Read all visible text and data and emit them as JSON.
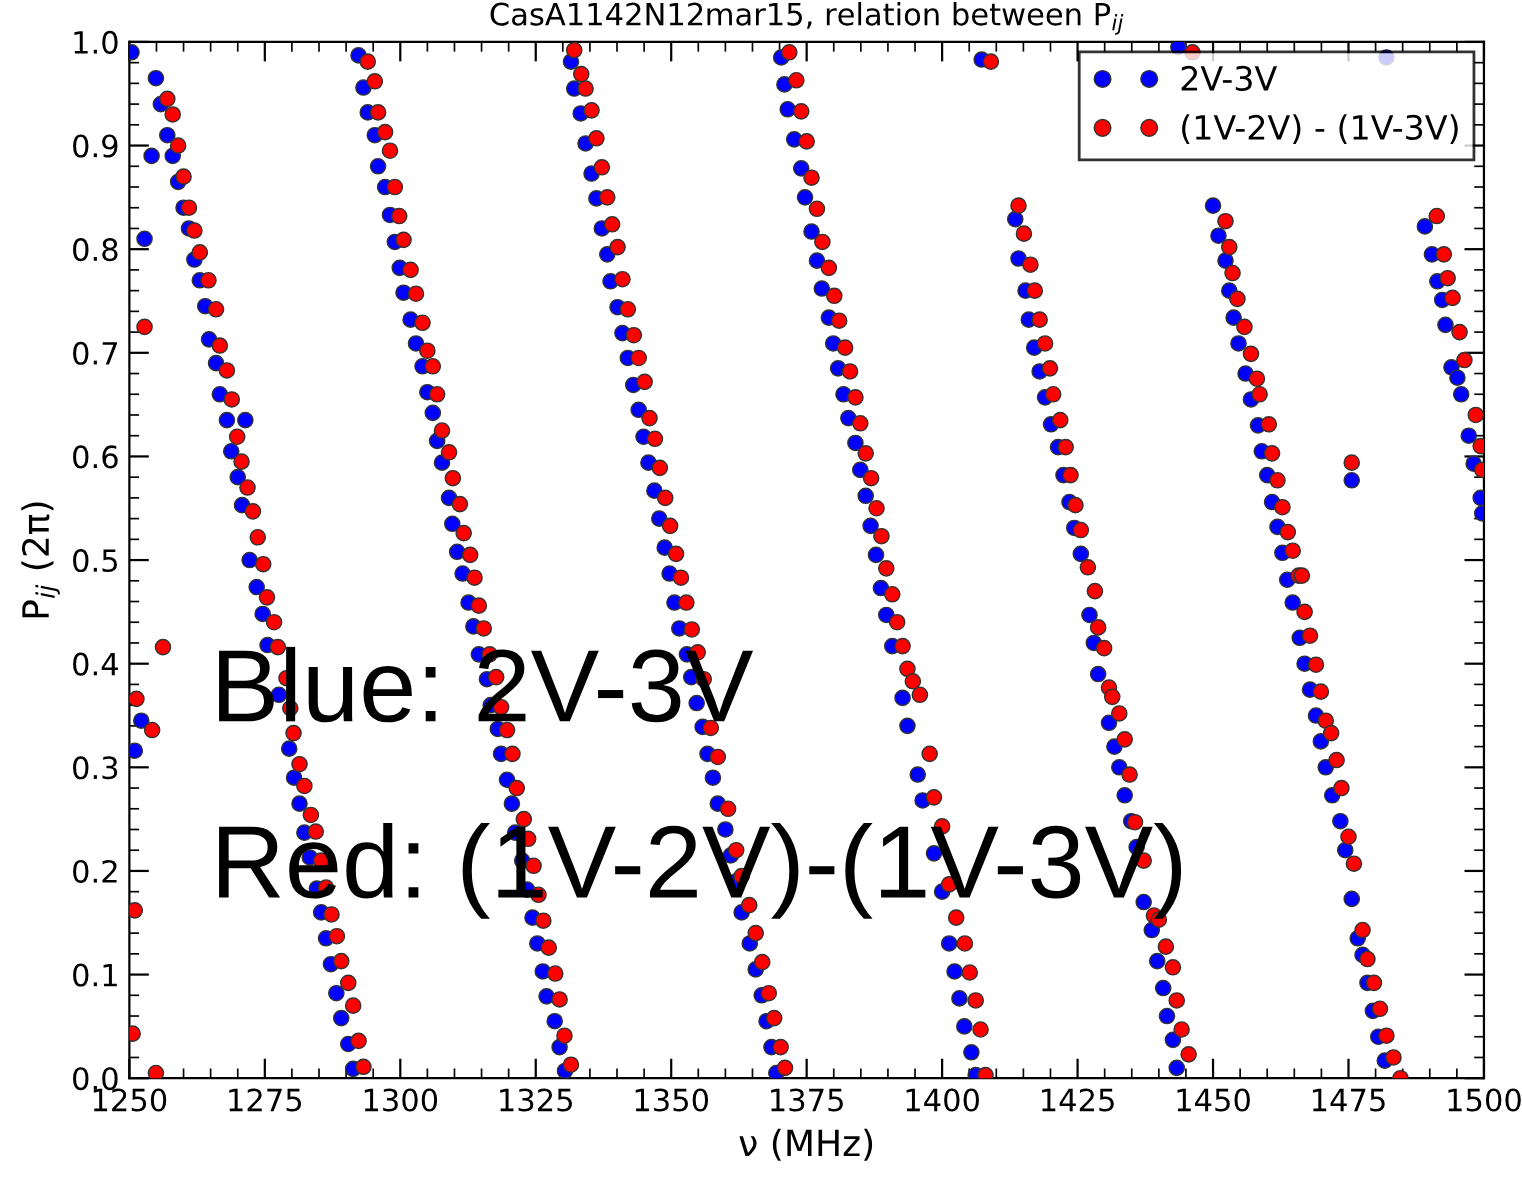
{
  "chart_data": {
    "type": "scatter",
    "title": "CasA1142N12mar15, relation between P$_{ij}$",
    "xlabel": "ν (MHz)",
    "ylabel": "P$_{ij}$ (2π)",
    "xlim": [
      1250,
      1500
    ],
    "ylim": [
      0,
      1
    ],
    "xticks": [
      1250,
      1275,
      1300,
      1325,
      1350,
      1375,
      1400,
      1425,
      1450,
      1475,
      1500
    ],
    "yticks": [
      {
        "value": 0,
        "label": "0.0"
      },
      {
        "value": 0.1,
        "label": "0.1"
      },
      {
        "value": 0.2,
        "label": "0.2"
      },
      {
        "value": 0.3,
        "label": "0.3"
      },
      {
        "value": 0.4,
        "label": "0.4"
      },
      {
        "value": 0.5,
        "label": "0.5"
      },
      {
        "value": 0.6,
        "label": "0.6"
      },
      {
        "value": 0.7,
        "label": "0.7"
      },
      {
        "value": 0.8,
        "label": "0.8"
      },
      {
        "value": 0.9,
        "label": "0.9"
      },
      {
        "value": 1,
        "label": "1.0"
      }
    ],
    "grid": false,
    "legend": "top right",
    "marker": "circle",
    "annotations": [
      "Blue: 2V-3V",
      "Red: (1V-2V)-(1V-3V)"
    ],
    "series": [
      {
        "name": "2V-3V",
        "color": "#0000ff",
        "x": [
          1250.4,
          1254.9,
          1254.1,
          1252.8,
          1255.8,
          1257,
          1258,
          1259,
          1260,
          1261,
          1262,
          1263,
          1264,
          1264.7,
          1266,
          1266.7,
          1268,
          1268.8,
          1270,
          1270.8,
          1271.4,
          1272.2,
          1273.5,
          1274.6,
          1275.5,
          1277.6,
          1279.5,
          1280.4,
          1281.4,
          1282.3,
          1283.3,
          1284.6,
          1285.4,
          1286.3,
          1287.2,
          1288.2,
          1289.1,
          1290.4,
          1291.3,
          1251,
          1252.2,
          1292.3,
          1293.2,
          1294,
          1295.3,
          1295.9,
          1297.2,
          1298.1,
          1299,
          1299.9,
          1300.6,
          1301.9,
          1302.9,
          1304.1,
          1305,
          1306,
          1306.8,
          1307.7,
          1309,
          1309.6,
          1310.5,
          1311.5,
          1312.6,
          1313.5,
          1314.5,
          1316,
          1316.7,
          1318,
          1318.6,
          1319.7,
          1320.6,
          1321.2,
          1322.5,
          1323.4,
          1324.4,
          1325.3,
          1326.3,
          1327,
          1328.5,
          1329.4,
          1330.4,
          1331.5,
          1332.1,
          1333.3,
          1334.2,
          1335.3,
          1336.2,
          1337.2,
          1338.2,
          1338.8,
          1340.1,
          1341,
          1342,
          1343,
          1344,
          1344.9,
          1345.8,
          1346.9,
          1347.8,
          1348.8,
          1349.7,
          1350.6,
          1351.5,
          1352.9,
          1353.7,
          1354.7,
          1355.8,
          1356.7,
          1357.7,
          1358.6,
          1360,
          1361,
          1362,
          1363,
          1364.5,
          1365.6,
          1366.7,
          1367.6,
          1368.5,
          1369.4,
          1370.3,
          1370.9,
          1371.5,
          1372.7,
          1374,
          1374.7,
          1375.9,
          1376.9,
          1377.8,
          1379.1,
          1379.9,
          1380.8,
          1381.8,
          1382.7,
          1384,
          1384.9,
          1385.9,
          1386.8,
          1387.8,
          1388.7,
          1389.7,
          1390.8,
          1392.7,
          1393.6,
          1395.5,
          1396.4,
          1398.5,
          1400,
          1401.3,
          1402.3,
          1403.2,
          1404.1,
          1405.4,
          1406.2,
          1407.3,
          1413.5,
          1414.1,
          1415.4,
          1416,
          1417,
          1418,
          1419,
          1420.1,
          1421.4,
          1422.4,
          1423.5,
          1424.4,
          1425.6,
          1427.2,
          1428,
          1428.8,
          1430.8,
          1431.8,
          1432.7,
          1433.7,
          1434.9,
          1435.9,
          1437.2,
          1438.7,
          1439.7,
          1440.8,
          1441.5,
          1442.6,
          1443.3,
          1443.6,
          1450,
          1451,
          1452.3,
          1453,
          1453.8,
          1454.7,
          1456,
          1457,
          1458.3,
          1459,
          1460,
          1460.9,
          1461.9,
          1462.8,
          1463.7,
          1464.7,
          1466,
          1466.9,
          1467.9,
          1469,
          1469.9,
          1470.8,
          1472,
          1473.5,
          1474.4,
          1475.6,
          1476.7,
          1477.6,
          1478.5,
          1479.5,
          1480.5,
          1481.7,
          1475.6,
          1482,
          1489.1,
          1490.4,
          1491.4,
          1492.3,
          1492.9,
          1494,
          1495.1,
          1495.8,
          1497.2,
          1498.1,
          1499.4,
          1499.7
        ],
        "values": [
          0.99,
          0.965,
          0.89,
          0.81,
          0.94,
          0.91,
          0.89,
          0.865,
          0.84,
          0.82,
          0.79,
          0.77,
          0.745,
          0.713,
          0.69,
          0.66,
          0.635,
          0.605,
          0.58,
          0.553,
          0.635,
          0.5,
          0.474,
          0.448,
          0.418,
          0.37,
          0.318,
          0.29,
          0.265,
          0.237,
          0.213,
          0.183,
          0.16,
          0.135,
          0.11,
          0.082,
          0.058,
          0.033,
          0.009,
          0.316,
          0.345,
          0.987,
          0.956,
          0.932,
          0.91,
          0.88,
          0.86,
          0.833,
          0.807,
          0.782,
          0.758,
          0.732,
          0.709,
          0.687,
          0.662,
          0.642,
          0.615,
          0.594,
          0.56,
          0.535,
          0.508,
          0.487,
          0.459,
          0.436,
          0.409,
          0.385,
          0.36,
          0.337,
          0.313,
          0.288,
          0.265,
          0.237,
          0.21,
          0.182,
          0.155,
          0.13,
          0.103,
          0.079,
          0.055,
          0.03,
          0.007,
          0.981,
          0.955,
          0.931,
          0.902,
          0.873,
          0.849,
          0.82,
          0.795,
          0.769,
          0.744,
          0.719,
          0.695,
          0.669,
          0.645,
          0.619,
          0.594,
          0.567,
          0.54,
          0.512,
          0.487,
          0.459,
          0.434,
          0.409,
          0.387,
          0.362,
          0.339,
          0.313,
          0.29,
          0.265,
          0.24,
          0.215,
          0.19,
          0.16,
          0.13,
          0.105,
          0.08,
          0.055,
          0.03,
          0.005,
          0.985,
          0.959,
          0.935,
          0.906,
          0.878,
          0.85,
          0.817,
          0.789,
          0.762,
          0.734,
          0.709,
          0.685,
          0.66,
          0.637,
          0.613,
          0.587,
          0.562,
          0.533,
          0.505,
          0.473,
          0.447,
          0.417,
          0.367,
          0.34,
          0.293,
          0.268,
          0.217,
          0.18,
          0.13,
          0.103,
          0.077,
          0.05,
          0.025,
          0.003,
          0.983,
          0.829,
          0.791,
          0.76,
          0.732,
          0.705,
          0.682,
          0.657,
          0.631,
          0.609,
          0.582,
          0.556,
          0.531,
          0.506,
          0.447,
          0.42,
          0.39,
          0.343,
          0.32,
          0.3,
          0.273,
          0.248,
          0.223,
          0.17,
          0.143,
          0.113,
          0.087,
          0.06,
          0.037,
          0.01,
          0.995,
          0.842,
          0.813,
          0.789,
          0.76,
          0.734,
          0.709,
          0.68,
          0.655,
          0.63,
          0.605,
          0.582,
          0.556,
          0.532,
          0.507,
          0.481,
          0.459,
          0.425,
          0.4,
          0.375,
          0.35,
          0.325,
          0.3,
          0.273,
          0.248,
          0.22,
          0.173,
          0.135,
          0.119,
          0.092,
          0.065,
          0.04,
          0.017,
          0.577,
          0.985,
          0.822,
          0.795,
          0.769,
          0.751,
          0.727,
          0.686,
          0.676,
          0.66,
          0.62,
          0.593,
          0.56,
          0.545
        ]
      },
      {
        "name": "(1V-2V) - (1V-3V)",
        "color": "#ff0000",
        "x": [
          1252.8,
          1257,
          1258,
          1259,
          1260,
          1261,
          1262,
          1263,
          1264.6,
          1266,
          1266.7,
          1268,
          1268.9,
          1269.9,
          1270.7,
          1271.8,
          1272.8,
          1273.7,
          1274.7,
          1275.4,
          1276.7,
          1277.4,
          1279,
          1279.7,
          1280.3,
          1281.4,
          1282.3,
          1283.5,
          1284.4,
          1285.4,
          1286.3,
          1287.3,
          1288.3,
          1289.1,
          1290.4,
          1291.3,
          1292.3,
          1293.2,
          1250.6,
          1251,
          1251.3,
          1254.2,
          1256.2,
          1254.9,
          1294,
          1295.3,
          1295.9,
          1297.2,
          1298.1,
          1299,
          1299.8,
          1300.6,
          1301.9,
          1302.9,
          1304.1,
          1305,
          1306,
          1306.8,
          1307.7,
          1309,
          1309.7,
          1311,
          1311.7,
          1312.9,
          1313.7,
          1314.5,
          1315.4,
          1316.5,
          1317.7,
          1318.6,
          1319.7,
          1320.7,
          1321.5,
          1322.8,
          1323.6,
          1324.6,
          1325.5,
          1326.4,
          1327.4,
          1328.6,
          1329.4,
          1330.3,
          1331.5,
          1332.1,
          1333.4,
          1334.2,
          1335.3,
          1336.2,
          1337.2,
          1338.2,
          1339.1,
          1340.1,
          1341,
          1342,
          1343.1,
          1344,
          1345.1,
          1346,
          1347,
          1347.9,
          1348.9,
          1349.8,
          1350.9,
          1351.8,
          1352.8,
          1353.8,
          1354.9,
          1356,
          1357.3,
          1358.6,
          1360.5,
          1362,
          1363,
          1364.4,
          1365.6,
          1366.8,
          1368,
          1369,
          1370.2,
          1371,
          1371.8,
          1373.1,
          1374,
          1375,
          1375.9,
          1376.9,
          1377.9,
          1379.1,
          1380.1,
          1381,
          1382.1,
          1383,
          1384,
          1384.9,
          1385.9,
          1386.9,
          1387.9,
          1388.8,
          1389.7,
          1390.8,
          1391.7,
          1392.7,
          1393.6,
          1394.6,
          1395.9,
          1397.7,
          1398.5,
          1400,
          1401.3,
          1402.6,
          1404.2,
          1405.1,
          1406.2,
          1407.1,
          1408,
          1409,
          1414.1,
          1415.1,
          1416.3,
          1417.1,
          1418,
          1419,
          1419.9,
          1420.5,
          1421.8,
          1422.8,
          1423.7,
          1424.6,
          1425.6,
          1426.9,
          1428.2,
          1428.8,
          1429.9,
          1430.8,
          1431.4,
          1432.7,
          1433.7,
          1434.6,
          1435.6,
          1437.2,
          1439.1,
          1440,
          1441.3,
          1442.6,
          1443.3,
          1444.2,
          1445.5,
          1446.2,
          1452.3,
          1453,
          1453.6,
          1454.5,
          1455.8,
          1457,
          1458.1,
          1458.6,
          1460.3,
          1460.9,
          1461.9,
          1462.8,
          1463.8,
          1464.7,
          1465.8,
          1466.4,
          1466.9,
          1467.9,
          1469,
          1469.9,
          1470.8,
          1471.8,
          1472.8,
          1473.7,
          1475,
          1476,
          1477.6,
          1478.5,
          1479.7,
          1480.8,
          1482,
          1483.3,
          1484.6,
          1475.6,
          1491.3,
          1492.6,
          1493.3,
          1494.2,
          1495.5,
          1496.4,
          1498.5,
          1499.4,
          1499.7
        ],
        "values": [
          0.725,
          0.945,
          0.93,
          0.9,
          0.87,
          0.84,
          0.818,
          0.797,
          0.77,
          0.742,
          0.707,
          0.683,
          0.655,
          0.619,
          0.595,
          0.57,
          0.547,
          0.522,
          0.496,
          0.464,
          0.44,
          0.416,
          0.386,
          0.357,
          0.333,
          0.303,
          0.282,
          0.254,
          0.238,
          0.21,
          0.184,
          0.158,
          0.137,
          0.113,
          0.092,
          0.07,
          0.036,
          0.011,
          0.043,
          0.162,
          0.366,
          0.336,
          0.416,
          0.005,
          0.981,
          0.962,
          0.932,
          0.913,
          0.895,
          0.86,
          0.832,
          0.809,
          0.78,
          0.757,
          0.729,
          0.702,
          0.687,
          0.66,
          0.625,
          0.604,
          0.579,
          0.554,
          0.526,
          0.505,
          0.483,
          0.456,
          0.434,
          0.409,
          0.387,
          0.358,
          0.336,
          0.313,
          0.28,
          0.25,
          0.231,
          0.205,
          0.177,
          0.152,
          0.126,
          0.101,
          0.076,
          0.041,
          0.013,
          0.992,
          0.969,
          0.955,
          0.934,
          0.907,
          0.879,
          0.85,
          0.824,
          0.802,
          0.771,
          0.742,
          0.717,
          0.695,
          0.672,
          0.637,
          0.617,
          0.589,
          0.56,
          0.533,
          0.506,
          0.483,
          0.459,
          0.433,
          0.411,
          0.385,
          0.338,
          0.31,
          0.26,
          0.22,
          0.195,
          0.167,
          0.14,
          0.112,
          0.082,
          0.058,
          0.03,
          0.01,
          0.99,
          0.963,
          0.933,
          0.904,
          0.869,
          0.839,
          0.807,
          0.782,
          0.755,
          0.731,
          0.705,
          0.682,
          0.657,
          0.632,
          0.603,
          0.579,
          0.55,
          0.523,
          0.492,
          0.467,
          0.44,
          0.417,
          0.395,
          0.383,
          0.37,
          0.313,
          0.271,
          0.243,
          0.187,
          0.155,
          0.13,
          0.102,
          0.075,
          0.047,
          0.003,
          0.981,
          0.842,
          0.815,
          0.785,
          0.76,
          0.732,
          0.709,
          0.685,
          0.66,
          0.635,
          0.609,
          0.582,
          0.553,
          0.529,
          0.493,
          0.47,
          0.435,
          0.415,
          0.377,
          0.368,
          0.352,
          0.327,
          0.293,
          0.247,
          0.21,
          0.157,
          0.153,
          0.127,
          0.107,
          0.075,
          0.047,
          0.023,
          0.99,
          0.827,
          0.802,
          0.777,
          0.752,
          0.725,
          0.699,
          0.675,
          0.66,
          0.631,
          0.603,
          0.577,
          0.551,
          0.527,
          0.509,
          0.485,
          0.485,
          0.45,
          0.427,
          0.399,
          0.373,
          0.345,
          0.333,
          0.307,
          0.28,
          0.233,
          0.207,
          0.143,
          0.115,
          0.092,
          0.067,
          0.041,
          0.02,
          0.0,
          0.594,
          0.832,
          0.795,
          0.772,
          0.753,
          0.72,
          0.693,
          0.64,
          0.61,
          0.587
        ]
      }
    ]
  }
}
